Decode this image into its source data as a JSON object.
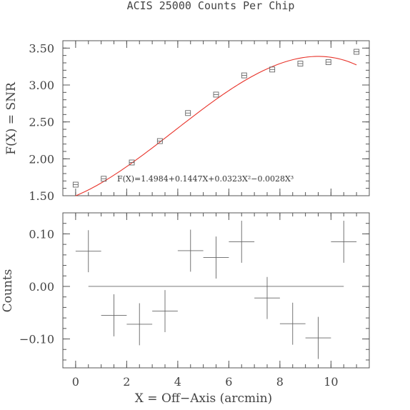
{
  "chart_data": [
    {
      "type": "scatter",
      "title": "ACIS 25000 Counts Per Chip",
      "xlabel": "",
      "ylabel": "F(X) = SNR",
      "xlim": [
        -0.5,
        11.5
      ],
      "ylim": [
        1.5,
        3.6
      ],
      "yticks": [
        "1.50",
        "2.00",
        "2.50",
        "3.00",
        "3.50"
      ],
      "yticks_values": [
        1.5,
        2.0,
        2.5,
        3.0,
        3.5
      ],
      "annotation": "F(X)=1.4984+0.1447X+0.0323X²−0.0028X³",
      "fit": {
        "name": "",
        "color": "#e8332a",
        "coefficients": [
          1.4984,
          0.1447,
          0.0323,
          -0.0028
        ],
        "x_range": [
          0,
          11
        ]
      },
      "points": {
        "x": [
          0,
          1.1,
          2.2,
          3.3,
          4.4,
          5.5,
          6.6,
          7.7,
          8.8,
          9.9,
          11.0
        ],
        "y": [
          1.65,
          1.73,
          1.95,
          2.24,
          2.62,
          2.87,
          3.13,
          3.21,
          3.29,
          3.31,
          3.45
        ]
      }
    },
    {
      "type": "scatter",
      "xlabel": "X = Off−Axis (arcmin)",
      "ylabel": "Counts",
      "xlim": [
        -0.5,
        11.5
      ],
      "ylim": [
        -0.155,
        0.14
      ],
      "xticks": [
        "0",
        "2",
        "4",
        "6",
        "8",
        "10"
      ],
      "xticks_values": [
        0,
        2,
        4,
        6,
        8,
        10
      ],
      "yticks": [
        "−0.10",
        "0.00",
        "0.10"
      ],
      "yticks_values": [
        -0.1,
        0.0,
        0.1
      ],
      "reference_line": {
        "y": 0.0,
        "x_range": [
          0.5,
          10.5
        ]
      },
      "points": {
        "x": [
          0.5,
          1.5,
          2.5,
          3.5,
          4.5,
          5.5,
          6.5,
          7.5,
          8.5,
          9.5,
          10.5
        ],
        "y": [
          0.067,
          -0.055,
          -0.072,
          -0.047,
          0.068,
          0.055,
          0.085,
          -0.022,
          -0.071,
          -0.098,
          0.085
        ],
        "x_err": [
          0.5,
          0.5,
          0.5,
          0.5,
          0.5,
          0.5,
          0.5,
          0.5,
          0.5,
          0.5,
          0.5
        ],
        "y_err": [
          0.04,
          0.04,
          0.04,
          0.04,
          0.04,
          0.04,
          0.04,
          0.04,
          0.04,
          0.04,
          0.04
        ]
      }
    }
  ]
}
